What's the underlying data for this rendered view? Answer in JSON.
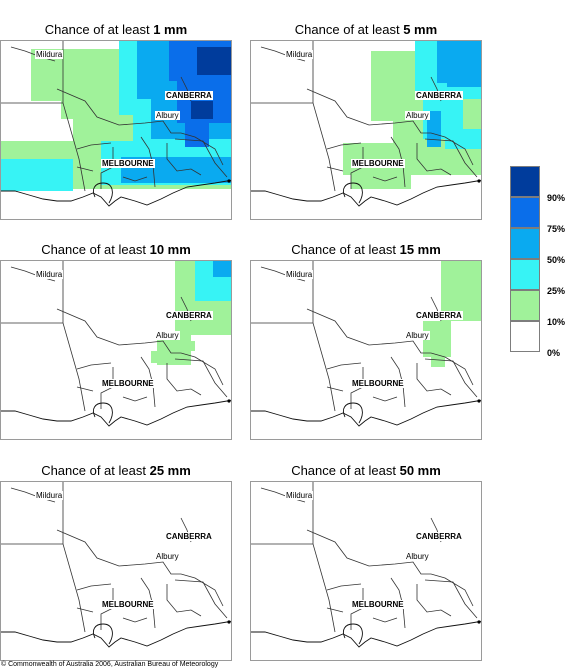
{
  "title_prefix": "Chance of at least",
  "panels": [
    {
      "threshold": "1 mm"
    },
    {
      "threshold": "5 mm"
    },
    {
      "threshold": "10 mm"
    },
    {
      "threshold": "15 mm"
    },
    {
      "threshold": "25 mm"
    },
    {
      "threshold": "50 mm"
    }
  ],
  "place_labels": {
    "mildura": "Mildura",
    "canberra": "CANBERRA",
    "albury": "Albury",
    "melbourne": "MELBOURNE"
  },
  "legend": {
    "items": [
      {
        "label": "90%",
        "color": "#003c9c"
      },
      {
        "label": "75%",
        "color": "#0a6eea"
      },
      {
        "label": "50%",
        "color": "#0aaaf0"
      },
      {
        "label": "25%",
        "color": "#37f3f5"
      },
      {
        "label": "10%",
        "color": "#a0f29a"
      },
      {
        "label": "0%",
        "color": "#ffffff"
      }
    ]
  },
  "copyright": "© Commonwealth of Australia 2006, Australian Bureau of Meteorology"
}
